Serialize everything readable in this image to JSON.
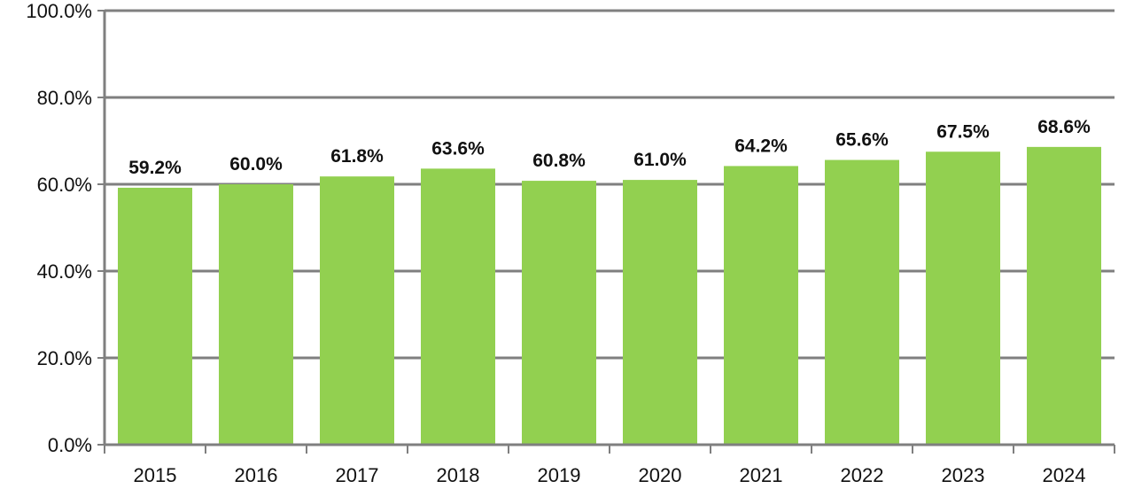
{
  "chart_data": {
    "type": "bar",
    "title": "",
    "xlabel": "",
    "ylabel": "",
    "categories": [
      "2015",
      "2016",
      "2017",
      "2018",
      "2019",
      "2020",
      "2021",
      "2022",
      "2023",
      "2024"
    ],
    "values": [
      59.2,
      60.0,
      61.8,
      63.6,
      60.8,
      61.0,
      64.2,
      65.6,
      67.5,
      68.6
    ],
    "data_labels": [
      "59.2%",
      "60.0%",
      "61.8%",
      "63.6%",
      "60.8%",
      "61.0%",
      "64.2%",
      "65.6%",
      "67.5%",
      "68.6%"
    ],
    "ylim": [
      0,
      100
    ],
    "yticks": [
      0,
      20,
      40,
      60,
      80,
      100
    ],
    "ytick_labels": [
      "0.0%",
      "20.0%",
      "40.0%",
      "60.0%",
      "80.0%",
      "100.0%"
    ],
    "grid": true,
    "legend": "none",
    "colors": {
      "bar": "#92d050",
      "grid": "#7f7f7f",
      "text": "#111111"
    }
  }
}
